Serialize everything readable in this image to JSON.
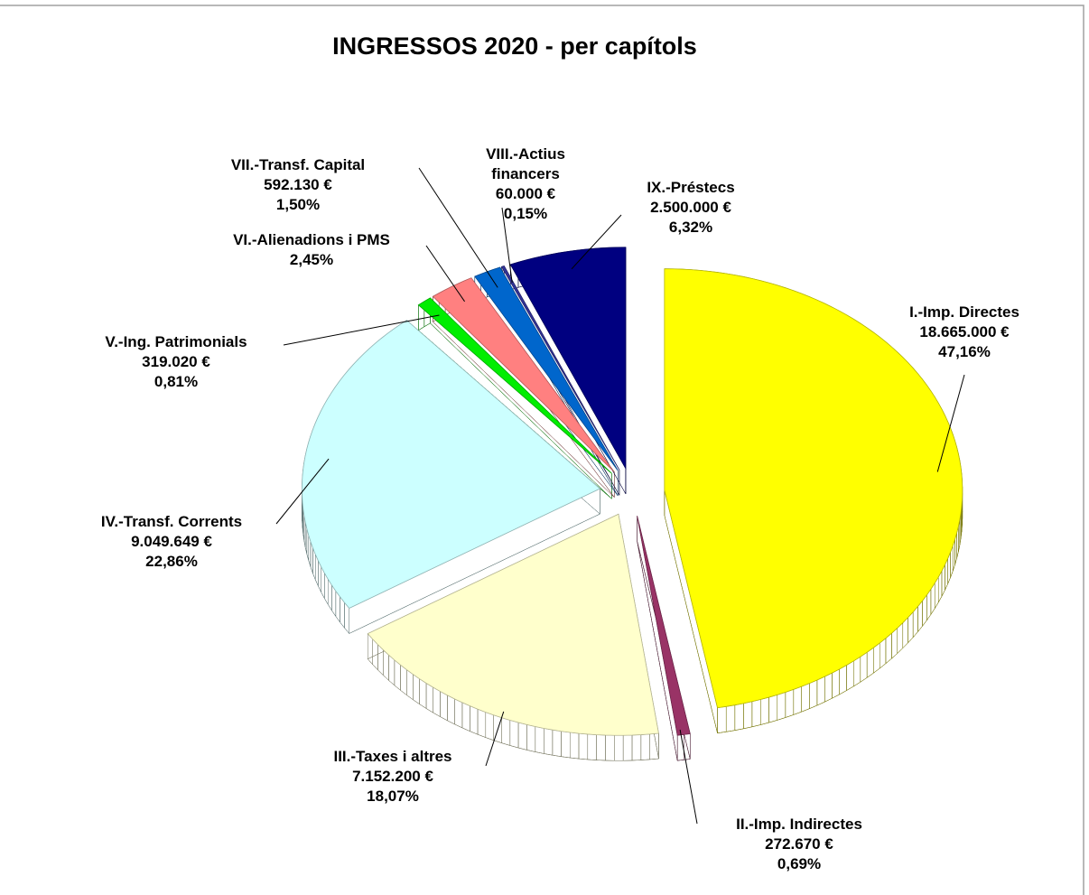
{
  "chart_data": {
    "type": "pie",
    "title": "INGRESSOS 2020 - per capítols",
    "categories": [
      "I.-Imp. Directes",
      "II.-Imp. Indirectes",
      "III.-Taxes i altres",
      "IV.-Transf. Corrents",
      "V.-Ing. Patrimonials",
      "VI.-Alienadions i PMS",
      "VII.-Transf. Capital",
      "VIII.-Actius financers",
      "IX.-Préstecs"
    ],
    "values": [
      47.16,
      0.69,
      18.07,
      22.86,
      0.81,
      2.45,
      1.5,
      0.15,
      6.32
    ],
    "value_labels": [
      "47,16%",
      "0,69%",
      "18,07%",
      "22,86%",
      "0,81%",
      "2,45%",
      "1,50%",
      "0,15%",
      "6,32%"
    ],
    "amount_labels": [
      "18.665.000 €",
      "272.670 €",
      "7.152.200 €",
      "9.049.649 €",
      "319.020 €",
      null,
      "592.130 €",
      "60.000 €",
      "2.500.000 €"
    ],
    "colors": [
      "#ffff00",
      "#993366",
      "#ffffcc",
      "#ccffff",
      "#00ee00",
      "#ff8080",
      "#0066cc",
      "#333399",
      "#000080"
    ]
  }
}
